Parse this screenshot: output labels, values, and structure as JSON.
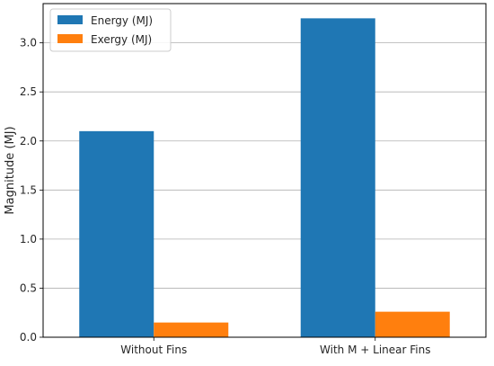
{
  "chart_data": {
    "type": "bar",
    "categories": [
      "Without Fins",
      "With M + Linear Fins"
    ],
    "series": [
      {
        "name": "Energy (MJ)",
        "values": [
          2.1,
          3.25
        ],
        "color": "#1f77b4"
      },
      {
        "name": "Exergy (MJ)",
        "values": [
          0.15,
          0.26
        ],
        "color": "#ff7f0e"
      }
    ],
    "title": "",
    "xlabel": "",
    "ylabel": "Magnitude (MJ)",
    "ylim": [
      0,
      3.4
    ],
    "yticks": [
      "0.0",
      "0.5",
      "1.0",
      "1.5",
      "2.0",
      "2.5",
      "3.0"
    ],
    "grid": "y-axis",
    "legend_position": "top-left"
  }
}
